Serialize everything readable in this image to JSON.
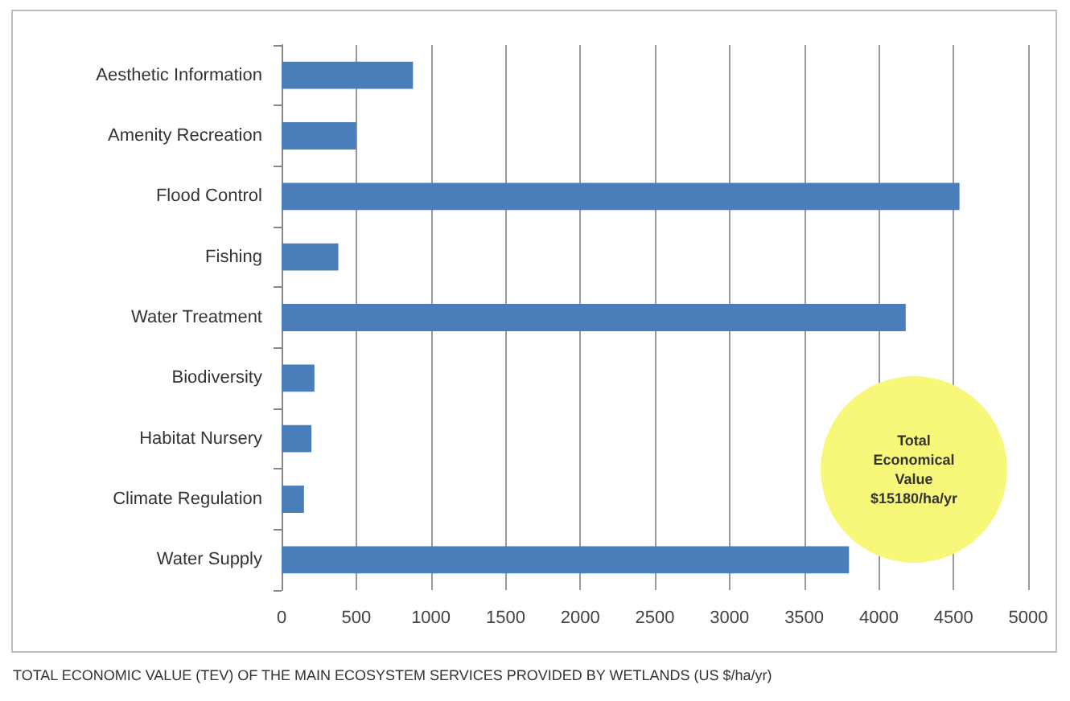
{
  "chart_data": {
    "type": "bar",
    "orientation": "horizontal",
    "categories": [
      "Aesthetic Information",
      "Amenity Recreation",
      "Flood Control",
      "Fishing",
      "Water Treatment",
      "Biodiversity",
      "Habitat Nursery",
      "Climate Regulation",
      "Water Supply"
    ],
    "values": [
      880,
      500,
      4540,
      380,
      4180,
      220,
      200,
      150,
      3800
    ],
    "color": "#4a7ebb",
    "xlim": [
      0,
      5000
    ],
    "xticks": [
      0,
      500,
      1000,
      1500,
      2000,
      2500,
      3000,
      3500,
      4000,
      4500,
      5000
    ],
    "grid": "x",
    "annotations": [
      "Total Economical Value $15180/ha/yr",
      "TOTAL ECONOMIC VALUE (TEV) OF THE MAIN ECOSYSTEM SERVICES PROVIDED BY WETLANDS (US $/ha/yr)"
    ]
  }
}
